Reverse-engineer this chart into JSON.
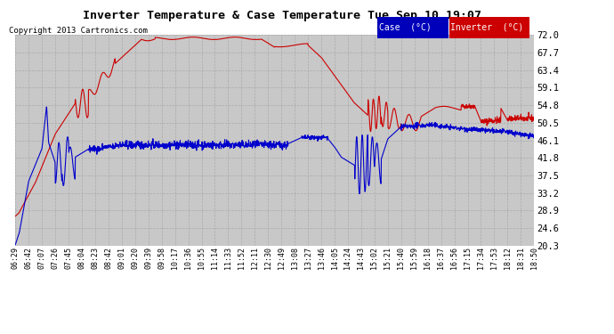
{
  "title": "Inverter Temperature & Case Temperature Tue Sep 10 19:07",
  "copyright": "Copyright 2013 Cartronics.com",
  "legend_case_label": "Case  (°C)",
  "legend_inverter_label": "Inverter  (°C)",
  "legend_case_bg": "#0000bb",
  "legend_inverter_bg": "#cc0000",
  "legend_text_color": "#ffffff",
  "bg_color": "#ffffff",
  "plot_bg_color": "#c8c8c8",
  "grid_color": "#aaaaaa",
  "line_color_case": "#0000cc",
  "line_color_inverter": "#cc0000",
  "ylim": [
    20.3,
    72.0
  ],
  "yticks": [
    20.3,
    24.6,
    28.9,
    33.2,
    37.5,
    41.8,
    46.1,
    50.5,
    54.8,
    59.1,
    63.4,
    67.7,
    72.0
  ],
  "xtick_labels": [
    "06:29",
    "06:42",
    "07:07",
    "07:26",
    "07:45",
    "08:04",
    "08:23",
    "08:42",
    "09:01",
    "09:20",
    "09:39",
    "09:58",
    "10:17",
    "10:36",
    "10:55",
    "11:14",
    "11:33",
    "11:52",
    "12:11",
    "12:30",
    "12:49",
    "13:08",
    "13:27",
    "13:46",
    "14:05",
    "14:24",
    "14:43",
    "15:02",
    "15:21",
    "15:40",
    "15:59",
    "16:18",
    "16:37",
    "16:56",
    "17:15",
    "17:34",
    "17:53",
    "18:12",
    "18:31",
    "18:50"
  ]
}
